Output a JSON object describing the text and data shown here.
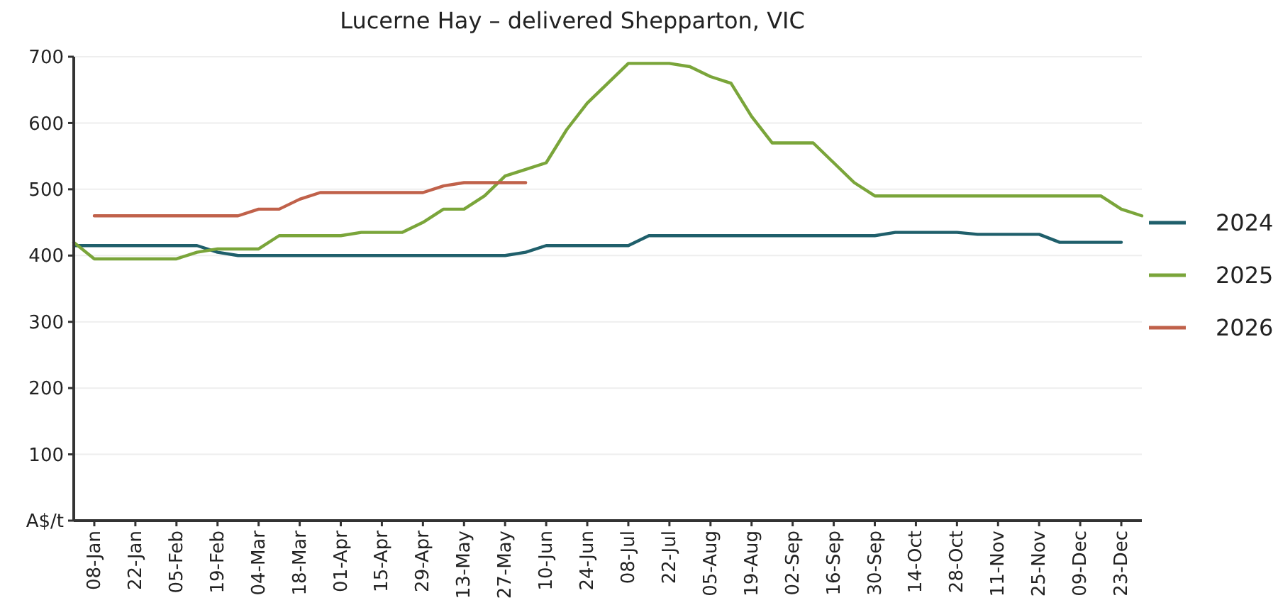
{
  "chart_data": {
    "type": "line",
    "title": "Lucerne Hay – delivered Shepparton, VIC",
    "categories": [
      null,
      "08-Jan",
      null,
      "22-Jan",
      null,
      "05-Feb",
      null,
      "19-Feb",
      null,
      "04-Mar",
      null,
      "18-Mar",
      null,
      "01-Apr",
      null,
      "15-Apr",
      null,
      "29-Apr",
      null,
      "13-May",
      null,
      "27-May",
      null,
      "10-Jun",
      null,
      "24-Jun",
      null,
      "08-Jul",
      null,
      "22-Jul",
      null,
      "05-Aug",
      null,
      "19-Aug",
      null,
      "02-Sep",
      null,
      "16-Sep",
      null,
      "30-Sep",
      null,
      "14-Oct",
      null,
      "28-Oct",
      null,
      "11-Nov",
      null,
      "25-Nov",
      null,
      "09-Dec",
      null,
      "23-Dec",
      null
    ],
    "series": [
      {
        "name": "2024",
        "color": "#1f5f6b",
        "values": [
          415,
          415,
          415,
          415,
          415,
          415,
          415,
          405,
          400,
          400,
          400,
          400,
          400,
          400,
          400,
          400,
          400,
          400,
          400,
          400,
          400,
          400,
          405,
          415,
          415,
          415,
          415,
          415,
          430,
          430,
          430,
          430,
          430,
          430,
          430,
          430,
          430,
          430,
          430,
          430,
          435,
          435,
          435,
          435,
          432,
          432,
          432,
          432,
          420,
          420,
          420,
          420,
          null
        ]
      },
      {
        "name": "2025",
        "color": "#7aa53a",
        "values": [
          420,
          395,
          395,
          395,
          395,
          395,
          405,
          410,
          410,
          410,
          430,
          430,
          430,
          430,
          435,
          435,
          435,
          450,
          470,
          470,
          490,
          520,
          530,
          540,
          590,
          630,
          660,
          690,
          690,
          690,
          685,
          670,
          660,
          610,
          570,
          570,
          570,
          540,
          510,
          490,
          490,
          490,
          490,
          490,
          490,
          490,
          490,
          490,
          490,
          490,
          490,
          470,
          460
        ]
      },
      {
        "name": "2026",
        "color": "#c0614a",
        "values": [
          null,
          460,
          460,
          460,
          460,
          460,
          460,
          460,
          460,
          470,
          470,
          485,
          495,
          495,
          495,
          495,
          495,
          495,
          505,
          510,
          510,
          510,
          510,
          null,
          null,
          null,
          null,
          null,
          null,
          null,
          null,
          null,
          null,
          null,
          null,
          null,
          null,
          null,
          null,
          null,
          null,
          null,
          null,
          null,
          null,
          null,
          null,
          null,
          null,
          null,
          null,
          null,
          null
        ]
      }
    ],
    "ylim": [
      0,
      700
    ],
    "yticks": [
      {
        "value": 0,
        "label": "A$/t"
      },
      100,
      200,
      300,
      400,
      500,
      600,
      700
    ],
    "grid": "y",
    "legend": "right",
    "marker": "none",
    "line_style": "solid"
  }
}
